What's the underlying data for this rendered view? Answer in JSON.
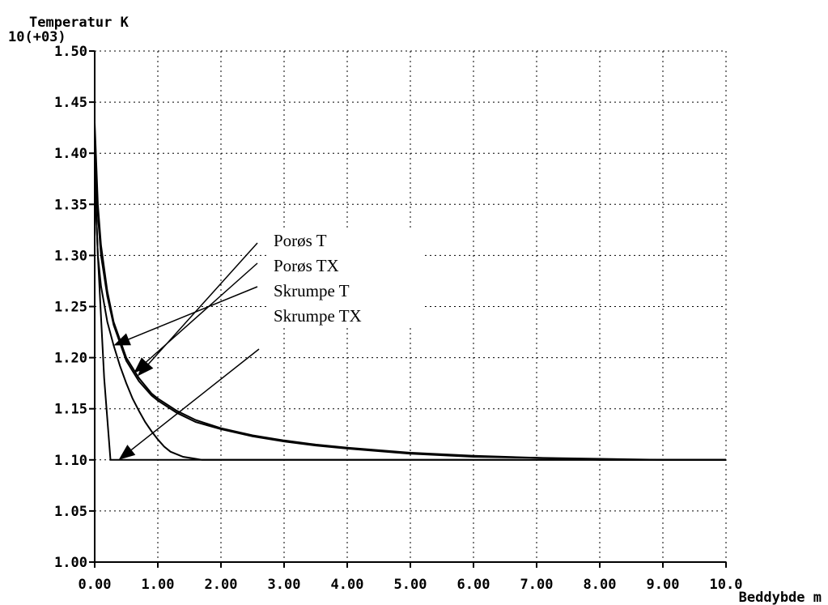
{
  "chart_data": {
    "type": "line",
    "title": "Temperatur K",
    "y_multiplier": "10(+03)",
    "xlabel": "Beddybde m",
    "xlim": [
      0,
      10
    ],
    "ylim": [
      1.0,
      1.5
    ],
    "x_ticks": [
      "0.00",
      "1.00",
      "2.00",
      "3.00",
      "4.00",
      "5.00",
      "6.00",
      "7.00",
      "8.00",
      "9.00",
      "10.0"
    ],
    "y_ticks": [
      "1.00",
      "1.05",
      "1.10",
      "1.15",
      "1.20",
      "1.25",
      "1.30",
      "1.35",
      "1.40",
      "1.45",
      "1.50"
    ],
    "grid": true,
    "series": [
      {
        "name": "Porøs T",
        "x": [
          0.0,
          0.05,
          0.1,
          0.2,
          0.3,
          0.5,
          0.7,
          0.9,
          1.0,
          1.3,
          1.6,
          2.0,
          2.5,
          3.0,
          3.5,
          4.0,
          5.0,
          6.0,
          7.0,
          8.0,
          9.0,
          10.0
        ],
        "y": [
          1.43,
          1.35,
          1.31,
          1.265,
          1.235,
          1.2,
          1.18,
          1.165,
          1.16,
          1.148,
          1.139,
          1.131,
          1.124,
          1.119,
          1.115,
          1.112,
          1.107,
          1.104,
          1.102,
          1.101,
          1.1,
          1.1
        ]
      },
      {
        "name": "Porøs TX",
        "x": [
          0.0,
          0.05,
          0.1,
          0.2,
          0.3,
          0.5,
          0.7,
          0.9,
          1.0,
          1.3,
          1.6,
          2.0,
          2.5,
          3.0,
          3.5,
          4.0,
          5.0,
          6.0,
          7.0,
          8.0,
          9.0,
          10.0
        ],
        "y": [
          1.41,
          1.34,
          1.3,
          1.26,
          1.232,
          1.197,
          1.177,
          1.163,
          1.158,
          1.146,
          1.137,
          1.13,
          1.123,
          1.118,
          1.114,
          1.111,
          1.106,
          1.103,
          1.102,
          1.1,
          1.1,
          1.1
        ]
      },
      {
        "name": "Skrumpe T",
        "x": [
          0.0,
          0.05,
          0.1,
          0.2,
          0.3,
          0.4,
          0.5,
          0.6,
          0.7,
          0.8,
          0.9,
          1.0,
          1.1,
          1.2,
          1.4,
          1.6,
          1.7,
          2.0,
          4.0,
          10.0
        ],
        "y": [
          1.38,
          1.3,
          1.27,
          1.235,
          1.212,
          1.192,
          1.175,
          1.16,
          1.148,
          1.137,
          1.128,
          1.12,
          1.113,
          1.108,
          1.103,
          1.101,
          1.1,
          1.1,
          1.1,
          1.1
        ]
      },
      {
        "name": "Skrumpe TX",
        "x": [
          0.0,
          0.05,
          0.1,
          0.15,
          0.2,
          0.25,
          0.3,
          0.5,
          1.0,
          5.0,
          10.0
        ],
        "y": [
          1.38,
          1.3,
          1.24,
          1.18,
          1.14,
          1.1,
          1.1,
          1.1,
          1.1,
          1.1,
          1.1
        ]
      }
    ],
    "annotations": [
      "Porøs T",
      "Porøs TX",
      "Skrumpe T",
      "Skrumpe TX"
    ]
  }
}
